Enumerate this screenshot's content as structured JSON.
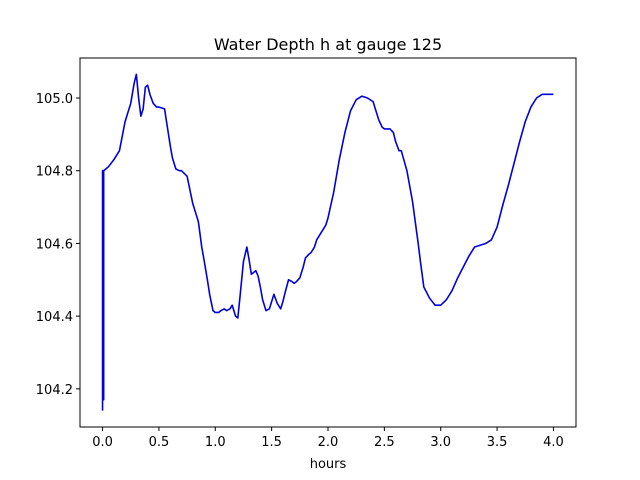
{
  "chart_data": {
    "type": "line",
    "title": "Water Depth h at gauge 125",
    "xlabel": "hours",
    "ylabel": "",
    "xlim": [
      -0.2,
      4.2
    ],
    "ylim": [
      104.095,
      105.11
    ],
    "x_ticks": [
      0.0,
      0.5,
      1.0,
      1.5,
      2.0,
      2.5,
      3.0,
      3.5,
      4.0
    ],
    "x_tick_labels": [
      "0.0",
      "0.5",
      "1.0",
      "1.5",
      "2.0",
      "2.5",
      "3.0",
      "3.5",
      "4.0"
    ],
    "y_ticks": [
      104.2,
      104.4,
      104.6,
      104.8,
      105.0
    ],
    "y_tick_labels": [
      "104.2",
      "104.4",
      "104.6",
      "104.8",
      "105.0"
    ],
    "grid": false,
    "series": [
      {
        "color": "#0000dd",
        "x": [
          0.0,
          0.0,
          0.005,
          0.01,
          0.01,
          0.05,
          0.1,
          0.15,
          0.2,
          0.25,
          0.28,
          0.3,
          0.32,
          0.34,
          0.36,
          0.38,
          0.4,
          0.42,
          0.45,
          0.48,
          0.5,
          0.55,
          0.6,
          0.62,
          0.65,
          0.68,
          0.7,
          0.75,
          0.8,
          0.82,
          0.85,
          0.88,
          0.9,
          0.93,
          0.95,
          0.98,
          1.0,
          1.03,
          1.05,
          1.08,
          1.1,
          1.13,
          1.15,
          1.18,
          1.2,
          1.22,
          1.25,
          1.28,
          1.3,
          1.32,
          1.34,
          1.36,
          1.38,
          1.4,
          1.42,
          1.45,
          1.48,
          1.5,
          1.52,
          1.55,
          1.58,
          1.6,
          1.62,
          1.65,
          1.68,
          1.7,
          1.72,
          1.75,
          1.78,
          1.8,
          1.83,
          1.85,
          1.88,
          1.9,
          1.93,
          1.95,
          1.98,
          2.0,
          2.05,
          2.1,
          2.15,
          2.2,
          2.25,
          2.3,
          2.35,
          2.4,
          2.45,
          2.48,
          2.5,
          2.55,
          2.58,
          2.6,
          2.63,
          2.65,
          2.7,
          2.75,
          2.8,
          2.82,
          2.85,
          2.9,
          2.95,
          3.0,
          3.05,
          3.1,
          3.15,
          3.2,
          3.25,
          3.3,
          3.35,
          3.4,
          3.45,
          3.5,
          3.55,
          3.6,
          3.65,
          3.7,
          3.75,
          3.8,
          3.85,
          3.9,
          3.95,
          4.0
        ],
        "y": [
          104.14,
          104.8,
          104.8,
          104.17,
          104.8,
          104.81,
          104.83,
          104.855,
          104.935,
          104.985,
          105.04,
          105.065,
          105.0,
          104.95,
          104.97,
          105.03,
          105.035,
          105.01,
          104.985,
          104.975,
          104.975,
          104.97,
          104.87,
          104.835,
          104.805,
          104.8,
          104.8,
          104.785,
          104.71,
          104.69,
          104.66,
          104.59,
          104.555,
          104.5,
          104.46,
          104.415,
          104.41,
          104.41,
          104.415,
          104.42,
          104.415,
          104.42,
          104.43,
          104.4,
          104.395,
          104.455,
          104.55,
          104.59,
          104.555,
          104.515,
          104.52,
          104.525,
          104.51,
          104.48,
          104.445,
          104.415,
          104.42,
          104.44,
          104.46,
          104.435,
          104.42,
          104.44,
          104.465,
          104.5,
          104.495,
          104.49,
          104.495,
          104.505,
          104.535,
          104.56,
          104.57,
          104.575,
          104.59,
          104.61,
          104.625,
          104.635,
          104.65,
          104.67,
          104.74,
          104.83,
          104.905,
          104.965,
          104.995,
          105.005,
          105.0,
          104.99,
          104.94,
          104.92,
          104.915,
          104.915,
          104.905,
          104.88,
          104.855,
          104.855,
          104.8,
          104.715,
          104.6,
          104.55,
          104.48,
          104.45,
          104.43,
          104.43,
          104.445,
          104.47,
          104.505,
          104.535,
          104.565,
          104.59,
          104.595,
          104.6,
          104.61,
          104.645,
          104.705,
          104.76,
          104.82,
          104.88,
          104.935,
          104.975,
          105.0,
          105.01,
          105.01,
          105.01
        ]
      }
    ]
  }
}
